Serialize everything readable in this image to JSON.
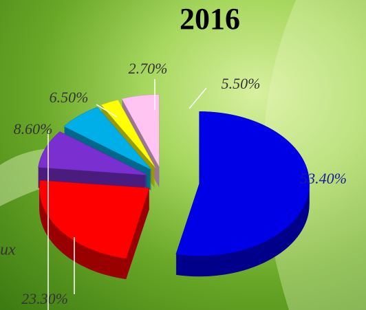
{
  "chart_data": {
    "type": "pie",
    "title": "2016",
    "categories": [
      null,
      null,
      null,
      null,
      null,
      null
    ],
    "values": [
      53.4,
      23.3,
      8.6,
      6.5,
      2.7,
      5.5
    ],
    "value_labels": [
      "53.40%",
      "23.30%",
      "8.60%",
      "6.50%",
      "2.70%",
      "5.50%"
    ],
    "colors": [
      "#0000e6",
      "#ff0000",
      "#7a2fd0",
      "#00aee8",
      "#ffff00",
      "#ffc4f2"
    ],
    "annotations": [
      "ux"
    ]
  }
}
